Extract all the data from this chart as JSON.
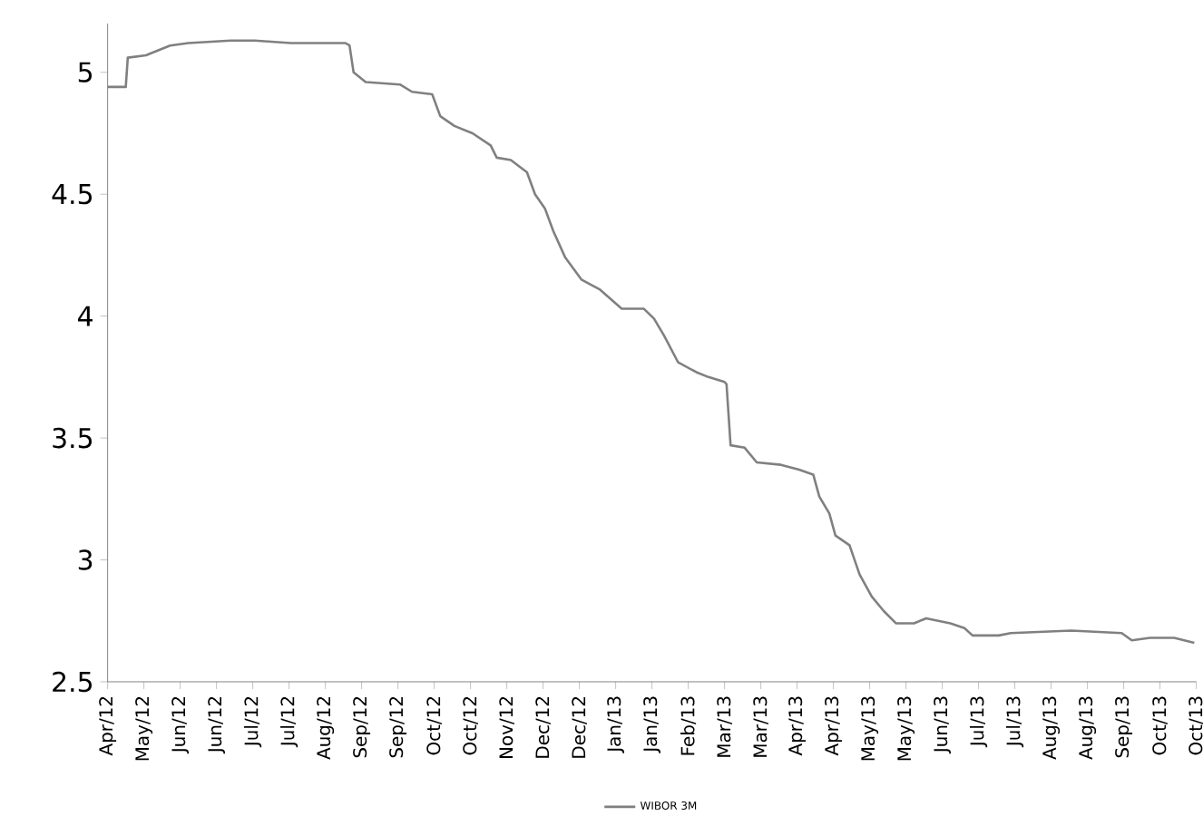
{
  "chart_data": {
    "type": "line",
    "x": [
      "2012-04-30",
      "2012-05-09",
      "2012-05-10",
      "2012-05-19",
      "2012-05-31",
      "2012-06-09",
      "2012-06-30",
      "2012-07-12",
      "2012-07-30",
      "2012-08-26",
      "2012-08-28",
      "2012-08-30",
      "2012-09-05",
      "2012-09-22",
      "2012-09-28",
      "2012-10-08",
      "2012-10-12",
      "2012-10-19",
      "2012-10-28",
      "2012-11-06",
      "2012-11-09",
      "2012-11-16",
      "2012-11-24",
      "2012-11-28",
      "2012-12-03",
      "2012-12-07",
      "2012-12-13",
      "2012-12-21",
      "2012-12-30",
      "2013-01-10",
      "2013-01-21",
      "2013-01-26",
      "2013-01-31",
      "2013-02-07",
      "2013-02-16",
      "2013-02-22",
      "2013-03-02",
      "2013-03-03",
      "2013-03-05",
      "2013-03-12",
      "2013-03-18",
      "2013-03-30",
      "2013-04-08",
      "2013-04-15",
      "2013-04-18",
      "2013-04-23",
      "2013-04-26",
      "2013-05-03",
      "2013-05-08",
      "2013-05-14",
      "2013-05-20",
      "2013-05-26",
      "2013-06-04",
      "2013-06-10",
      "2013-06-22",
      "2013-06-29",
      "2013-07-03",
      "2013-07-16",
      "2013-07-22",
      "2013-08-21",
      "2013-09-15",
      "2013-09-20",
      "2013-09-29",
      "2013-10-11",
      "2013-10-21"
    ],
    "series": [
      {
        "name": "WIBOR 3M",
        "color": "#808080",
        "values": [
          4.94,
          4.94,
          5.06,
          5.07,
          5.11,
          5.12,
          5.13,
          5.13,
          5.12,
          5.12,
          5.11,
          5.0,
          4.96,
          4.95,
          4.92,
          4.91,
          4.82,
          4.78,
          4.75,
          4.7,
          4.65,
          4.64,
          4.59,
          4.5,
          4.44,
          4.35,
          4.24,
          4.15,
          4.11,
          4.03,
          4.03,
          3.99,
          3.92,
          3.81,
          3.77,
          3.75,
          3.73,
          3.72,
          3.47,
          3.46,
          3.4,
          3.39,
          3.37,
          3.35,
          3.26,
          3.19,
          3.1,
          3.06,
          2.94,
          2.85,
          2.79,
          2.74,
          2.74,
          2.76,
          2.74,
          2.72,
          2.69,
          2.69,
          2.7,
          2.71,
          2.7,
          2.67,
          2.68,
          2.68,
          2.66
        ]
      }
    ],
    "xlim": [
      "2012-04-30",
      "2013-10-22"
    ],
    "xticks": [
      {
        "value": "2012-04-30",
        "label": "Apr/12"
      },
      {
        "value": "2012-05-18",
        "label": "May/12"
      },
      {
        "value": "2012-06-05",
        "label": "Jun/12"
      },
      {
        "value": "2012-06-23",
        "label": "Jun/12"
      },
      {
        "value": "2012-07-11",
        "label": "Jul/12"
      },
      {
        "value": "2012-07-29",
        "label": "Jul/12"
      },
      {
        "value": "2012-08-16",
        "label": "Aug/12"
      },
      {
        "value": "2012-09-03",
        "label": "Sep/12"
      },
      {
        "value": "2012-09-21",
        "label": "Sep/12"
      },
      {
        "value": "2012-10-09",
        "label": "Oct/12"
      },
      {
        "value": "2012-10-27",
        "label": "Oct/12"
      },
      {
        "value": "2012-11-14",
        "label": "Nov/12"
      },
      {
        "value": "2012-12-02",
        "label": "Dec/12"
      },
      {
        "value": "2012-12-20",
        "label": "Dec/12"
      },
      {
        "value": "2013-01-07",
        "label": "Jan/13"
      },
      {
        "value": "2013-01-25",
        "label": "Jan/13"
      },
      {
        "value": "2013-02-12",
        "label": "Feb/13"
      },
      {
        "value": "2013-03-02",
        "label": "Mar/13"
      },
      {
        "value": "2013-03-20",
        "label": "Mar/13"
      },
      {
        "value": "2013-04-07",
        "label": "Apr/13"
      },
      {
        "value": "2013-04-25",
        "label": "Apr/13"
      },
      {
        "value": "2013-05-13",
        "label": "May/13"
      },
      {
        "value": "2013-05-31",
        "label": "May/13"
      },
      {
        "value": "2013-06-18",
        "label": "Jun/13"
      },
      {
        "value": "2013-07-06",
        "label": "Jul/13"
      },
      {
        "value": "2013-07-24",
        "label": "Jul/13"
      },
      {
        "value": "2013-08-11",
        "label": "Aug/13"
      },
      {
        "value": "2013-08-29",
        "label": "Aug/13"
      },
      {
        "value": "2013-09-16",
        "label": "Sep/13"
      },
      {
        "value": "2013-10-04",
        "label": "Oct/13"
      },
      {
        "value": "2013-10-22",
        "label": "Oct/13"
      }
    ],
    "ylim": [
      2.5,
      5.2
    ],
    "yticks": [
      2.5,
      3,
      3.5,
      4,
      4.5,
      5
    ],
    "legend": "bottom",
    "marker": "none",
    "line_style": "solid"
  }
}
